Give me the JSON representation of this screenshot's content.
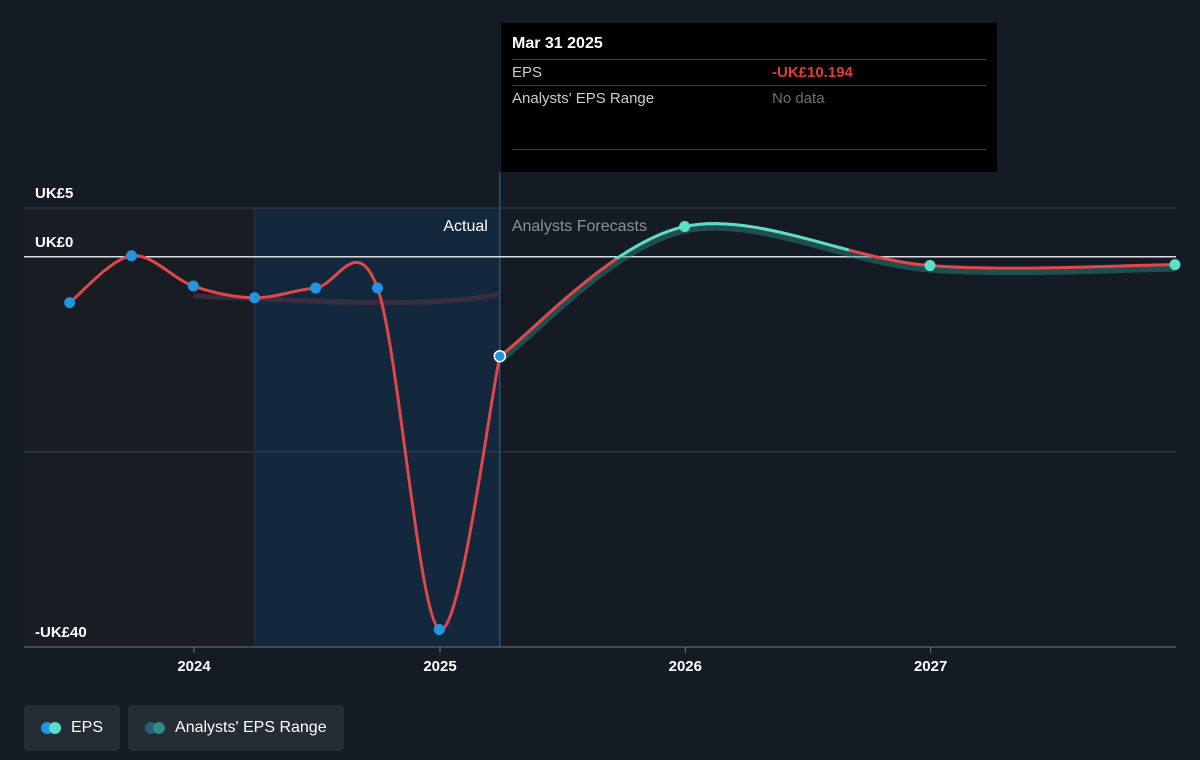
{
  "tooltip": {
    "date": "Mar 31 2025",
    "rows": [
      {
        "label": "EPS",
        "value": "-UK£10.194"
      },
      {
        "label": "Analysts' EPS Range",
        "value": "No data"
      }
    ]
  },
  "legend": {
    "eps": "EPS",
    "range": "Analysts' EPS Range"
  },
  "colors": {
    "background": "#151b24",
    "actual_line": "#e0474c",
    "forecast_line": "#58e0c6",
    "actual_point": "#2394df",
    "forecast_point": "#58e0c6",
    "range_band": "#2f8f84",
    "highlight": "#13283d"
  },
  "chart_data": {
    "type": "line",
    "ylim": [
      -40,
      5
    ],
    "y_ticks": [
      {
        "value": 5,
        "label": "UK£5"
      },
      {
        "value": 0,
        "label": "UK£0"
      },
      {
        "value": -40,
        "label": "-UK£40"
      }
    ],
    "y_gridlines": [
      5,
      0,
      -20,
      -40
    ],
    "x_ticks": [
      {
        "value": "2024-01-01",
        "label": "2024"
      },
      {
        "value": "2025-01-01",
        "label": "2025"
      },
      {
        "value": "2026-01-01",
        "label": "2026"
      },
      {
        "value": "2027-01-01",
        "label": "2027"
      }
    ],
    "actual_label": "Actual",
    "forecast_label": "Analysts Forecasts",
    "split_date": "2025-03-31",
    "highlight_start": "2024-03-31",
    "series": [
      {
        "name": "EPS",
        "segment": "actual",
        "points": [
          {
            "x": "2023-06-30",
            "y": -4.7
          },
          {
            "x": "2023-09-30",
            "y": 0.1
          },
          {
            "x": "2023-12-31",
            "y": -3.0
          },
          {
            "x": "2024-03-31",
            "y": -4.2
          },
          {
            "x": "2024-06-30",
            "y": -3.2
          },
          {
            "x": "2024-09-30",
            "y": -3.2
          },
          {
            "x": "2024-12-31",
            "y": -38.2
          },
          {
            "x": "2025-03-31",
            "y": -10.194
          }
        ]
      },
      {
        "name": "EPS",
        "segment": "forecast",
        "points": [
          {
            "x": "2025-03-31",
            "y": -10.194
          },
          {
            "x": "2025-12-31",
            "y": 3.1
          },
          {
            "x": "2026-12-31",
            "y": -0.9
          },
          {
            "x": "2027-12-31",
            "y": -0.8
          }
        ]
      }
    ]
  }
}
